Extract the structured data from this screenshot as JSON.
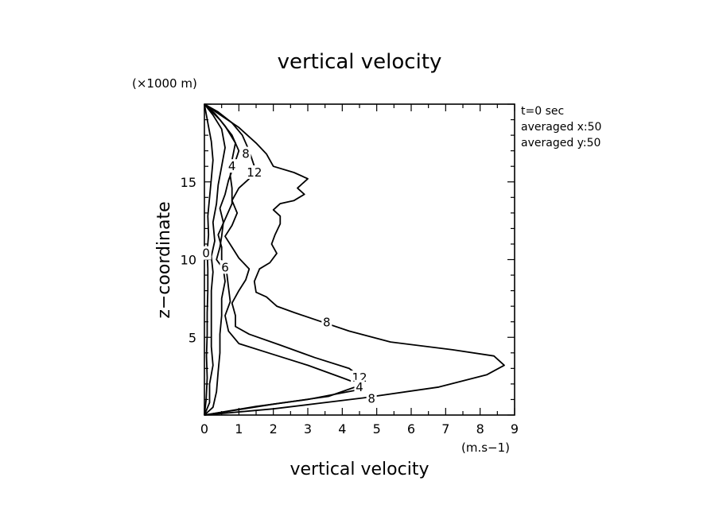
{
  "chart_data": {
    "type": "line",
    "title": "vertical velocity",
    "xlabel": "vertical velocity",
    "x_units": "(m.s−1)",
    "ylabel": "z−coordinate",
    "y_units": "(×1000 m)",
    "xlim": [
      0,
      9
    ],
    "ylim": [
      0,
      20
    ],
    "x_ticks": [
      0,
      1,
      2,
      3,
      4,
      5,
      6,
      7,
      8,
      9
    ],
    "y_ticks": [
      5,
      10,
      15
    ],
    "grid": false,
    "legend": "none",
    "info_lines": [
      "t=0 sec",
      "averaged  x:50",
      "averaged  y:50"
    ],
    "series": [
      {
        "label": "8",
        "points": [
          [
            0,
            0
          ],
          [
            2,
            0.4
          ],
          [
            4.6,
            1.1
          ],
          [
            6.8,
            1.8
          ],
          [
            8.2,
            2.6
          ],
          [
            8.7,
            3.2
          ],
          [
            8.4,
            3.8
          ],
          [
            7.2,
            4.2
          ],
          [
            5.4,
            4.7
          ],
          [
            4.2,
            5.4
          ],
          [
            3.4,
            6.0
          ],
          [
            2.6,
            6.6
          ],
          [
            2.1,
            7.0
          ],
          [
            1.8,
            7.6
          ],
          [
            1.5,
            7.9
          ],
          [
            1.45,
            8.6
          ],
          [
            1.6,
            9.4
          ],
          [
            1.9,
            9.8
          ],
          [
            2.1,
            10.4
          ],
          [
            1.95,
            11.0
          ],
          [
            2.05,
            11.6
          ],
          [
            2.2,
            12.3
          ],
          [
            2.2,
            12.8
          ],
          [
            2.0,
            13.2
          ],
          [
            2.2,
            13.6
          ],
          [
            2.6,
            13.8
          ],
          [
            2.9,
            14.2
          ],
          [
            2.7,
            14.6
          ],
          [
            3.0,
            15.2
          ],
          [
            2.6,
            15.6
          ],
          [
            2.0,
            16.0
          ],
          [
            1.8,
            16.8
          ],
          [
            1.5,
            17.5
          ],
          [
            1.0,
            18.5
          ],
          [
            0.4,
            19.4
          ],
          [
            0,
            20
          ]
        ]
      },
      {
        "label": "12",
        "points": [
          [
            0,
            0
          ],
          [
            2.0,
            0.7
          ],
          [
            3.6,
            1.2
          ],
          [
            4.5,
            1.9
          ],
          [
            4.5,
            2.5
          ],
          [
            4.2,
            3.0
          ],
          [
            3.2,
            3.7
          ],
          [
            2.2,
            4.5
          ],
          [
            1.3,
            5.2
          ],
          [
            0.9,
            5.7
          ],
          [
            0.9,
            6.4
          ],
          [
            0.8,
            7.2
          ],
          [
            1.0,
            8.0
          ],
          [
            1.2,
            8.7
          ],
          [
            1.3,
            9.4
          ],
          [
            1.0,
            10.1
          ],
          [
            0.8,
            10.8
          ],
          [
            0.6,
            11.5
          ],
          [
            0.8,
            12.2
          ],
          [
            0.95,
            13.0
          ],
          [
            0.8,
            13.8
          ],
          [
            1.0,
            14.6
          ],
          [
            1.3,
            15.2
          ],
          [
            1.45,
            16.0
          ],
          [
            1.3,
            17.0
          ],
          [
            1.1,
            18.0
          ],
          [
            0.8,
            18.8
          ],
          [
            0.4,
            19.5
          ],
          [
            0,
            20
          ]
        ]
      },
      {
        "label": "4",
        "points": [
          [
            0,
            0
          ],
          [
            1.5,
            0.55
          ],
          [
            3.0,
            1.0
          ],
          [
            4.4,
            1.6
          ],
          [
            4.6,
            1.9
          ],
          [
            4.0,
            2.4
          ],
          [
            3.0,
            3.2
          ],
          [
            2.0,
            3.9
          ],
          [
            1.0,
            4.6
          ],
          [
            0.7,
            5.4
          ],
          [
            0.6,
            6.4
          ],
          [
            0.75,
            7.3
          ],
          [
            0.7,
            8.2
          ],
          [
            0.65,
            9.1
          ],
          [
            0.5,
            10.0
          ],
          [
            0.5,
            10.8
          ],
          [
            0.4,
            11.6
          ],
          [
            0.6,
            12.6
          ],
          [
            0.8,
            13.6
          ],
          [
            0.8,
            14.6
          ],
          [
            0.75,
            15.4
          ],
          [
            0.8,
            16.4
          ],
          [
            0.9,
            17.5
          ],
          [
            0.6,
            18.6
          ],
          [
            0.3,
            19.4
          ],
          [
            0,
            20
          ]
        ]
      },
      {
        "label": "6",
        "points": [
          [
            0,
            0
          ],
          [
            0.25,
            0.5
          ],
          [
            0.35,
            1.5
          ],
          [
            0.4,
            2.8
          ],
          [
            0.45,
            4.0
          ],
          [
            0.45,
            5.2
          ],
          [
            0.5,
            6.4
          ],
          [
            0.5,
            7.5
          ],
          [
            0.6,
            8.6
          ],
          [
            0.55,
            9.4
          ],
          [
            0.35,
            10.0
          ],
          [
            0.45,
            10.8
          ],
          [
            0.5,
            11.5
          ],
          [
            0.55,
            12.4
          ],
          [
            0.45,
            13.3
          ],
          [
            0.6,
            14.2
          ],
          [
            0.7,
            15.1
          ],
          [
            0.85,
            16.0
          ],
          [
            1.0,
            17.0
          ],
          [
            0.8,
            18.0
          ],
          [
            0.45,
            19.0
          ],
          [
            0,
            20
          ]
        ]
      },
      {
        "label": "",
        "points": [
          [
            0,
            0
          ],
          [
            0.15,
            0.8
          ],
          [
            0.15,
            2.0
          ],
          [
            0.25,
            3.2
          ],
          [
            0.2,
            4.4
          ],
          [
            0.2,
            5.6
          ],
          [
            0.2,
            6.8
          ],
          [
            0.2,
            8.0
          ],
          [
            0.25,
            9.2
          ],
          [
            0.2,
            10.2
          ],
          [
            0.3,
            11.2
          ],
          [
            0.25,
            12.4
          ],
          [
            0.35,
            13.6
          ],
          [
            0.4,
            14.8
          ],
          [
            0.5,
            16.0
          ],
          [
            0.6,
            17.2
          ],
          [
            0.5,
            18.4
          ],
          [
            0.25,
            19.3
          ],
          [
            0,
            20
          ]
        ]
      },
      {
        "label": "",
        "points": [
          [
            0,
            0
          ],
          [
            0.05,
            1.0
          ],
          [
            0.08,
            2.4
          ],
          [
            0.06,
            3.8
          ],
          [
            0.08,
            5.2
          ],
          [
            0.08,
            6.6
          ],
          [
            0.1,
            8.0
          ],
          [
            0.1,
            9.4
          ],
          [
            0.08,
            10.5
          ],
          [
            0.12,
            11.6
          ],
          [
            0.1,
            12.8
          ],
          [
            0.15,
            14.0
          ],
          [
            0.2,
            15.2
          ],
          [
            0.25,
            16.4
          ],
          [
            0.2,
            17.6
          ],
          [
            0.1,
            18.8
          ],
          [
            0,
            20
          ]
        ]
      }
    ],
    "inline_labels": [
      {
        "text": "8",
        "x": 3.55,
        "y": 5.95
      },
      {
        "text": "8",
        "x": 4.85,
        "y": 1.05
      },
      {
        "text": "12",
        "x": 4.5,
        "y": 2.4
      },
      {
        "text": "12",
        "x": 1.45,
        "y": 15.6
      },
      {
        "text": "4",
        "x": 4.5,
        "y": 1.8
      },
      {
        "text": "4",
        "x": 0.8,
        "y": 16.0
      },
      {
        "text": "8",
        "x": 1.2,
        "y": 16.8
      },
      {
        "text": "6",
        "x": 0.6,
        "y": 9.5
      },
      {
        "text": "0",
        "x": 0.05,
        "y": 10.4
      }
    ]
  }
}
